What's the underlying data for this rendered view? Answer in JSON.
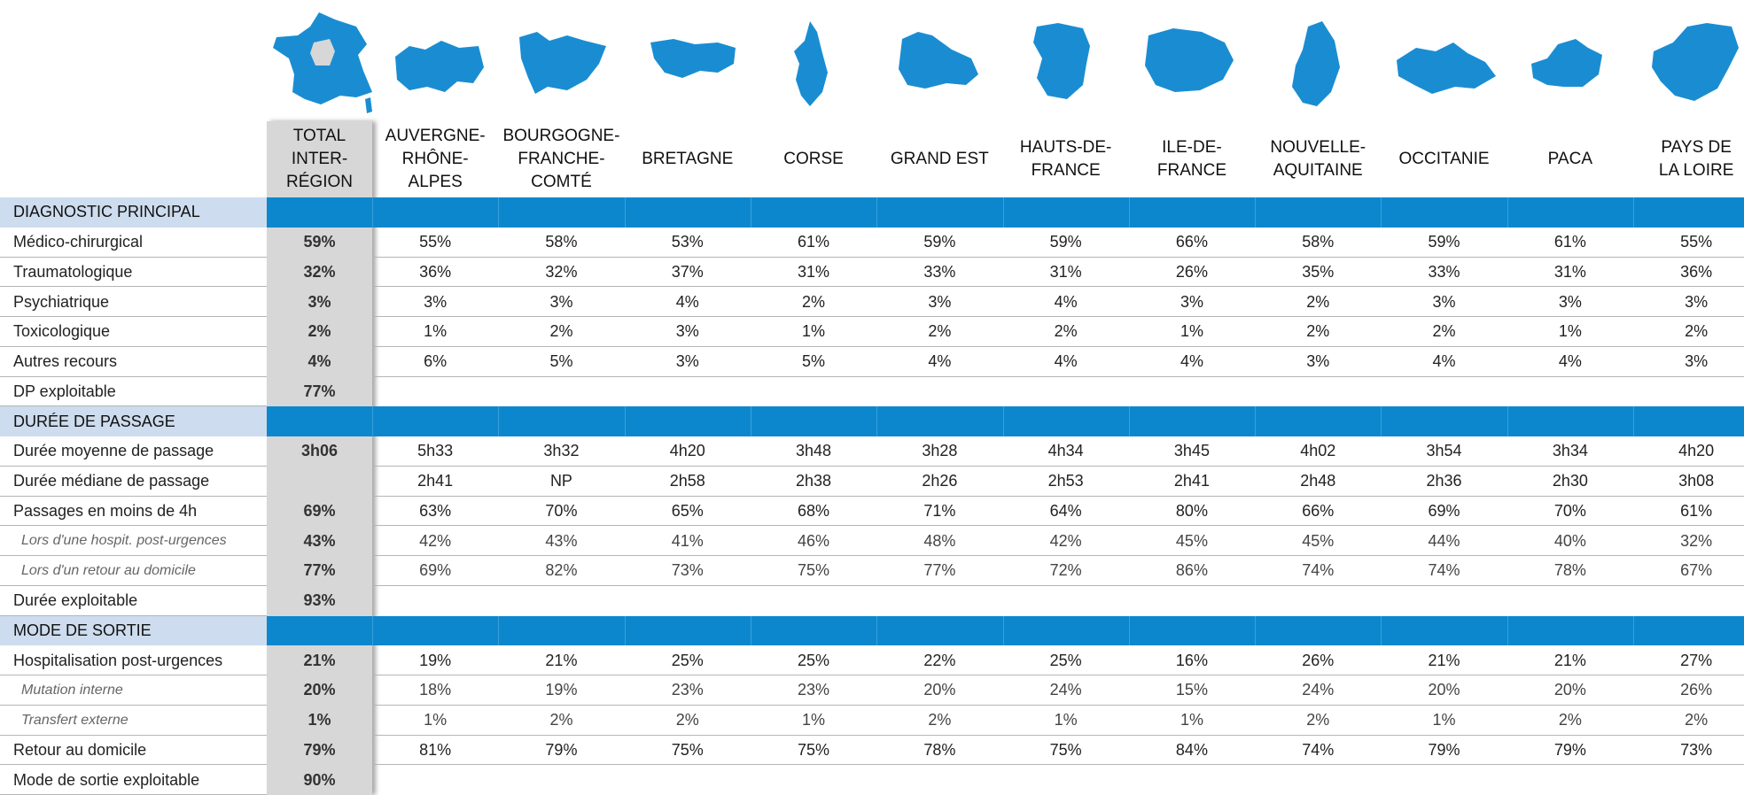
{
  "header": {
    "columns": [
      [
        "TOTAL",
        "INTER-",
        "RÉGION"
      ],
      [
        "AUVERGNE-",
        "RHÔNE-",
        "ALPES"
      ],
      [
        "BOURGOGNE-",
        "FRANCHE-",
        "COMTÉ"
      ],
      [
        "BRETAGNE"
      ],
      [
        "CORSE"
      ],
      [
        "GRAND EST"
      ],
      [
        "HAUTS-DE-",
        "FRANCE"
      ],
      [
        "ILE-DE-",
        "FRANCE"
      ],
      [
        "NOUVELLE-",
        "AQUITAINE"
      ],
      [
        "OCCITANIE"
      ],
      [
        "PACA"
      ],
      [
        "PAYS DE",
        "LA LOIRE"
      ]
    ]
  },
  "sections": [
    {
      "title": "DIAGNOSTIC PRINCIPAL",
      "rows": [
        {
          "label": "Médico-chirurgical",
          "total": "59%",
          "values": [
            "55%",
            "58%",
            "53%",
            "61%",
            "59%",
            "59%",
            "66%",
            "58%",
            "59%",
            "61%",
            "55%"
          ]
        },
        {
          "label": "Traumatologique",
          "total": "32%",
          "values": [
            "36%",
            "32%",
            "37%",
            "31%",
            "33%",
            "31%",
            "26%",
            "35%",
            "33%",
            "31%",
            "36%"
          ]
        },
        {
          "label": "Psychiatrique",
          "total": "3%",
          "values": [
            "3%",
            "3%",
            "4%",
            "2%",
            "3%",
            "4%",
            "3%",
            "2%",
            "3%",
            "3%",
            "3%"
          ]
        },
        {
          "label": "Toxicologique",
          "total": "2%",
          "values": [
            "1%",
            "2%",
            "3%",
            "1%",
            "2%",
            "2%",
            "1%",
            "2%",
            "2%",
            "1%",
            "2%"
          ]
        },
        {
          "label": "Autres recours",
          "total": "4%",
          "values": [
            "6%",
            "5%",
            "3%",
            "5%",
            "4%",
            "4%",
            "4%",
            "3%",
            "4%",
            "4%",
            "3%"
          ]
        },
        {
          "label": "DP exploitable",
          "total": "77%"
        }
      ]
    },
    {
      "title": "DURÉE DE PASSAGE",
      "rows": [
        {
          "label": "Durée moyenne de passage",
          "total": "3h06",
          "values": [
            "5h33",
            "3h32",
            "4h20",
            "3h48",
            "3h28",
            "4h34",
            "3h45",
            "4h02",
            "3h54",
            "3h34",
            "4h20"
          ]
        },
        {
          "label": "Durée médiane de passage",
          "total": null,
          "values": [
            "2h41",
            "NP",
            "2h58",
            "2h38",
            "2h26",
            "2h53",
            "2h41",
            "2h48",
            "2h36",
            "2h30",
            "3h08"
          ]
        },
        {
          "label": "Passages en moins de 4h",
          "total": "69%",
          "values": [
            "63%",
            "70%",
            "65%",
            "68%",
            "71%",
            "64%",
            "80%",
            "66%",
            "69%",
            "70%",
            "61%"
          ],
          "subrows": [
            {
              "label": "Lors d'une hospit. post-urgences",
              "total": "43%",
              "values": [
                "42%",
                "43%",
                "41%",
                "46%",
                "48%",
                "42%",
                "45%",
                "45%",
                "44%",
                "40%",
                "32%"
              ]
            },
            {
              "label": "Lors d'un retour au domicile",
              "total": "77%",
              "values": [
                "69%",
                "82%",
                "73%",
                "75%",
                "77%",
                "72%",
                "86%",
                "74%",
                "74%",
                "78%",
                "67%"
              ]
            }
          ]
        },
        {
          "label": "Durée exploitable",
          "total": "93%"
        }
      ]
    },
    {
      "title": "MODE DE SORTIE",
      "rows": [
        {
          "label": "Hospitalisation post-urgences",
          "total": "21%",
          "values": [
            "19%",
            "21%",
            "25%",
            "25%",
            "22%",
            "25%",
            "16%",
            "26%",
            "21%",
            "21%",
            "27%"
          ],
          "subrows": [
            {
              "label": "Mutation interne",
              "total": "20%",
              "values": [
                "18%",
                "19%",
                "23%",
                "23%",
                "20%",
                "24%",
                "15%",
                "24%",
                "20%",
                "20%",
                "26%"
              ]
            },
            {
              "label": "Transfert externe",
              "total": "1%",
              "values": [
                "1%",
                "2%",
                "2%",
                "1%",
                "2%",
                "1%",
                "1%",
                "2%",
                "1%",
                "2%",
                "2%"
              ]
            }
          ]
        },
        {
          "label": "Retour au domicile",
          "total": "79%",
          "values": [
            "81%",
            "79%",
            "75%",
            "75%",
            "78%",
            "75%",
            "84%",
            "74%",
            "79%",
            "79%",
            "73%"
          ]
        },
        {
          "label": "Mode de sortie exploitable",
          "total": "90%"
        }
      ]
    }
  ]
}
